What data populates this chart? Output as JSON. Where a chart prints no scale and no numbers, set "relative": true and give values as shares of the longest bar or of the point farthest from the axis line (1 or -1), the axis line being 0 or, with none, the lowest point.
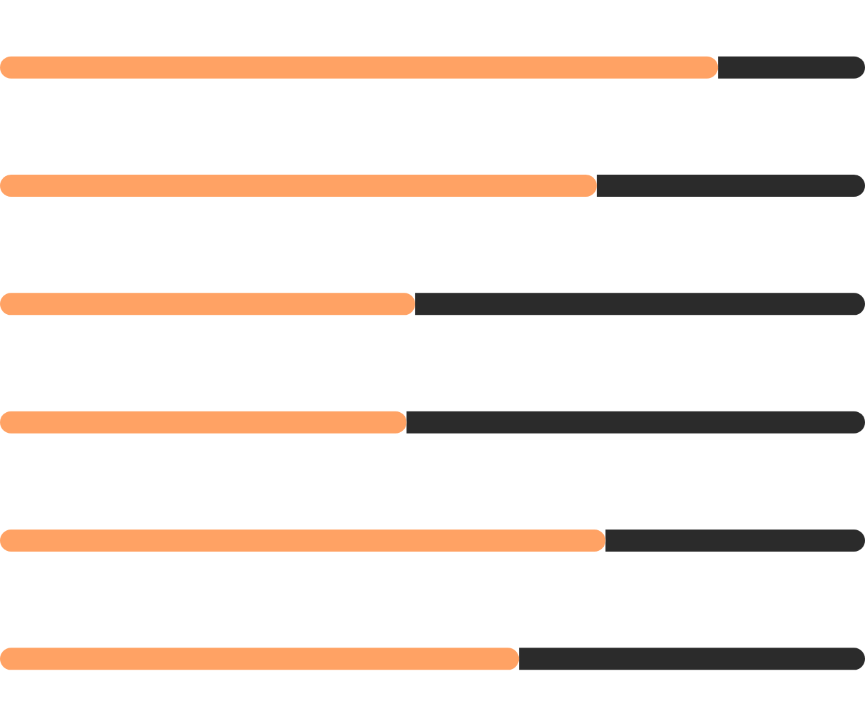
{
  "chart_data": {
    "type": "bar",
    "orientation": "horizontal",
    "stacked": true,
    "relative": true,
    "categories": [
      null,
      null,
      null,
      null,
      null,
      null
    ],
    "series": [
      {
        "color": "#ffa264",
        "values": [
          0.83,
          0.69,
          0.48,
          0.47,
          0.7,
          0.6
        ]
      },
      {
        "color": "#2b2b2b",
        "values": [
          0.17,
          0.31,
          0.52,
          0.53,
          0.3,
          0.4
        ]
      }
    ]
  }
}
